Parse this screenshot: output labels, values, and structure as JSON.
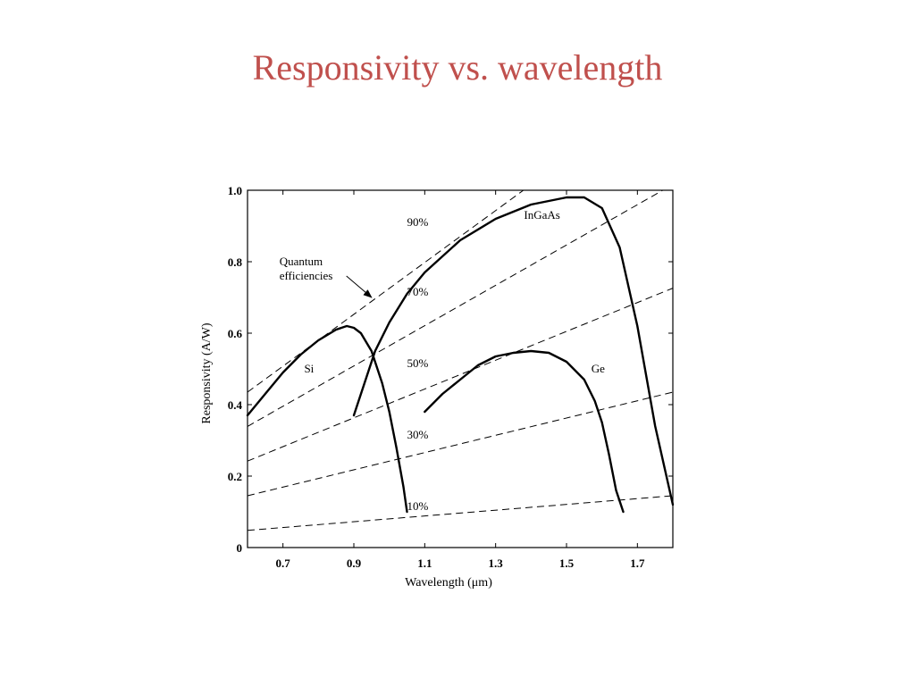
{
  "slide": {
    "title": "Responsivity vs. wavelength",
    "title_color": "#c0504d"
  },
  "chart_data": {
    "type": "line",
    "title": "",
    "xlabel": "Wavelength (μm)",
    "ylabel": "Responsivity (A/W)",
    "xlim": [
      0.6,
      1.8
    ],
    "ylim": [
      0,
      1.0
    ],
    "x_ticks": [
      0.7,
      0.9,
      1.1,
      1.3,
      1.5,
      1.7
    ],
    "x_tick_labels": [
      "0.7",
      "0.9",
      "1.1",
      "1.3",
      "1.5",
      "1.7"
    ],
    "y_ticks": [
      0,
      0.2,
      0.4,
      0.6,
      0.8,
      1.0
    ],
    "y_tick_labels": [
      "0",
      "0.2",
      "0.4",
      "0.6",
      "0.8",
      "1.0"
    ],
    "grid": false,
    "series": [
      {
        "name": "Si",
        "style": "solid",
        "x": [
          0.6,
          0.65,
          0.7,
          0.75,
          0.8,
          0.85,
          0.88,
          0.9,
          0.92,
          0.95,
          0.98,
          1.0,
          1.02,
          1.04,
          1.05
        ],
        "y": [
          0.37,
          0.43,
          0.49,
          0.54,
          0.58,
          0.61,
          0.62,
          0.615,
          0.6,
          0.55,
          0.46,
          0.38,
          0.28,
          0.17,
          0.1
        ]
      },
      {
        "name": "InGaAs",
        "style": "solid",
        "x": [
          0.9,
          0.93,
          0.96,
          1.0,
          1.05,
          1.1,
          1.2,
          1.3,
          1.4,
          1.5,
          1.55,
          1.6,
          1.65,
          1.7,
          1.75,
          1.8
        ],
        "y": [
          0.37,
          0.46,
          0.55,
          0.63,
          0.71,
          0.77,
          0.86,
          0.92,
          0.96,
          0.98,
          0.98,
          0.95,
          0.84,
          0.62,
          0.34,
          0.12
        ]
      },
      {
        "name": "Ge",
        "style": "solid",
        "x": [
          1.1,
          1.15,
          1.2,
          1.25,
          1.3,
          1.35,
          1.4,
          1.45,
          1.5,
          1.55,
          1.58,
          1.6,
          1.62,
          1.64,
          1.66
        ],
        "y": [
          0.38,
          0.43,
          0.47,
          0.51,
          0.535,
          0.545,
          0.55,
          0.545,
          0.52,
          0.47,
          0.41,
          0.35,
          0.26,
          0.16,
          0.1
        ]
      }
    ],
    "efficiency_lines": [
      {
        "label": "10%",
        "x": [
          0.6,
          1.8
        ],
        "y": [
          0.048,
          0.145
        ]
      },
      {
        "label": "30%",
        "x": [
          0.6,
          1.8
        ],
        "y": [
          0.145,
          0.435
        ]
      },
      {
        "label": "50%",
        "x": [
          0.6,
          1.8
        ],
        "y": [
          0.242,
          0.726
        ]
      },
      {
        "label": "70%",
        "x": [
          0.6,
          1.8
        ],
        "y": [
          0.339,
          1.016
        ]
      },
      {
        "label": "90%",
        "x": [
          0.6,
          1.8
        ],
        "y": [
          0.435,
          1.306
        ]
      }
    ],
    "annotations": [
      {
        "text": "Si",
        "x": 0.76,
        "y": 0.49
      },
      {
        "text": "InGaAs",
        "x": 1.38,
        "y": 0.92
      },
      {
        "text": "Ge",
        "x": 1.57,
        "y": 0.49
      },
      {
        "text": "90%",
        "x": 1.05,
        "y": 0.9
      },
      {
        "text": "70%",
        "x": 1.05,
        "y": 0.705
      },
      {
        "text": "50%",
        "x": 1.05,
        "y": 0.505
      },
      {
        "text": "30%",
        "x": 1.05,
        "y": 0.305
      },
      {
        "text": "10%",
        "x": 1.05,
        "y": 0.105
      }
    ],
    "quantum_note": {
      "lines": [
        "Quantum",
        "efficiencies"
      ],
      "x": 0.69,
      "y": 0.79,
      "arrow_to": {
        "x": 0.95,
        "y": 0.7
      }
    }
  }
}
